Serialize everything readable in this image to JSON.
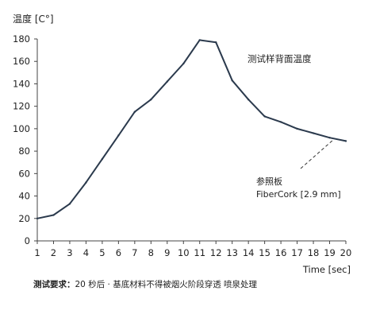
{
  "chart_data": {
    "type": "line",
    "ylabel": "温度 [C°]",
    "xlabel": "Time [sec]",
    "xlim": [
      1,
      20
    ],
    "ylim": [
      0,
      180
    ],
    "x_ticks": [
      "1",
      "2",
      "3",
      "4",
      "5",
      "6",
      "7",
      "8",
      "9",
      "10",
      "11",
      "12",
      "13",
      "14",
      "15",
      "16",
      "17",
      "18",
      "19",
      "20"
    ],
    "y_ticks": [
      "0",
      "20",
      "40",
      "60",
      "80",
      "100",
      "120",
      "140",
      "160",
      "180"
    ],
    "grid": false,
    "x": [
      1,
      2,
      3,
      4,
      5,
      6,
      7,
      8,
      9,
      10,
      11,
      12,
      13,
      14,
      15,
      16,
      17,
      18,
      19,
      20
    ],
    "series": [
      {
        "values": [
          20,
          23,
          33,
          52,
          73,
          94,
          115,
          126,
          142,
          158,
          179,
          177,
          143,
          126,
          111,
          106,
          100,
          96,
          92,
          89
        ]
      }
    ],
    "annotations": {
      "series_label": "测试样背面温度",
      "reference_label_line1": "参照板",
      "reference_label_line2": "FiberCork [2.9 mm]"
    },
    "line_color": "#2b3a4d"
  },
  "caption": {
    "bold": "测试要求：",
    "text": "20 秒后 · 基底材料不得被烟火阶段穿透 喷泉处理"
  }
}
